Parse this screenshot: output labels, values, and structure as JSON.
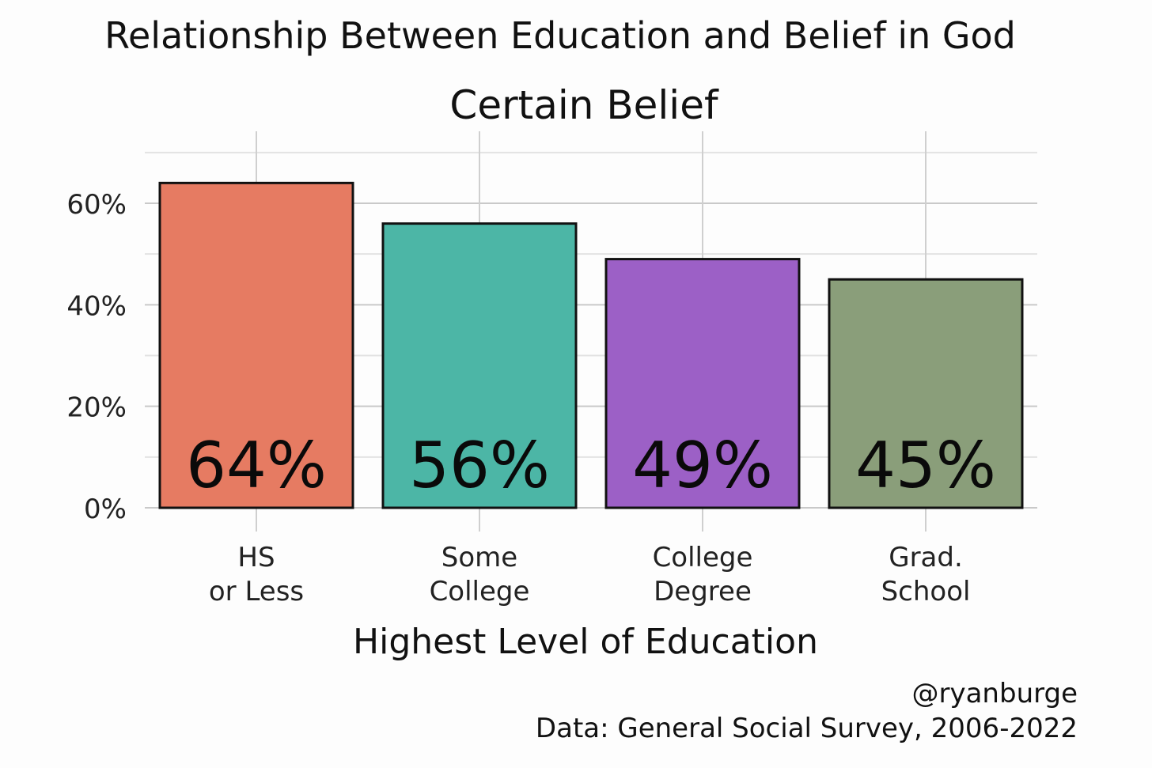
{
  "chart_data": {
    "type": "bar",
    "title": "Relationship Between Education and Belief in God",
    "subtitle": "Certain Belief",
    "xlabel": "Highest Level of Education",
    "ylabel": "",
    "categories": [
      [
        "HS",
        "or Less"
      ],
      [
        "Some",
        "College"
      ],
      [
        "College",
        "Degree"
      ],
      [
        "Grad.",
        "School"
      ]
    ],
    "values": [
      0.64,
      0.56,
      0.49,
      0.45
    ],
    "value_labels": [
      "64%",
      "56%",
      "49%",
      "45%"
    ],
    "ylim": [
      0,
      0.7
    ],
    "yticks": [
      0,
      0.2,
      0.4,
      0.6
    ],
    "ytick_labels": [
      "0%",
      "20%",
      "40%",
      "60%"
    ],
    "grid": true,
    "legend": "none",
    "colors": [
      "#e67b62",
      "#4cb6a6",
      "#9c60c6",
      "#8a9e7a"
    ],
    "credit": "@ryanburge",
    "source": "Data: General Social Survey, 2006-2022"
  }
}
